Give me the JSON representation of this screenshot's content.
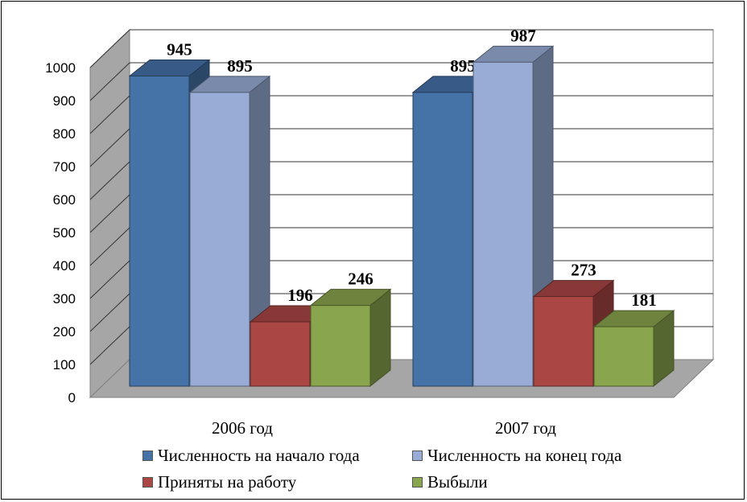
{
  "chart_data": {
    "type": "bar",
    "categories": [
      "2006 год",
      "2007 год"
    ],
    "series": [
      {
        "name": "Численность на начало года",
        "values": [
          945,
          895
        ],
        "color": "#4572A7"
      },
      {
        "name": "Численность на конец года",
        "values": [
          895,
          987
        ],
        "color": "#98ACD5"
      },
      {
        "name": "Приняты на работу",
        "values": [
          196,
          273
        ],
        "color": "#AA4643"
      },
      {
        "name": "Выбыли",
        "values": [
          246,
          181
        ],
        "color": "#89A54E"
      }
    ],
    "yticks": [
      "0",
      "100",
      "200",
      "300",
      "400",
      "500",
      "600",
      "700",
      "800",
      "900",
      "1000"
    ],
    "ylim": [
      0,
      1000
    ],
    "grid": true,
    "legend_position": "bottom",
    "three_d": true
  }
}
